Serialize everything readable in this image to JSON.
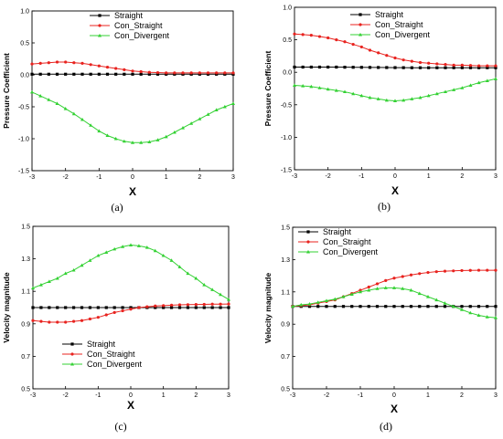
{
  "chart_data": [
    {
      "type": "line",
      "caption": "(a)",
      "xlabel": "X",
      "ylabel": "Pressure Coefficient",
      "xlim": [
        -3,
        3
      ],
      "ylim": [
        -1.5,
        1.0
      ],
      "xticks": [
        -3,
        -2,
        -1,
        0,
        1,
        2,
        3
      ],
      "yticks": [
        -1.5,
        -1.0,
        -0.5,
        0.0,
        0.5,
        1.0
      ],
      "ytick_labels": [
        "-1.5",
        "-1.0",
        "-0.5",
        "0.0",
        "0.5",
        "1.0"
      ],
      "legend_position": "top-right",
      "series": [
        {
          "name": "Straight",
          "color": "#000000",
          "marker": "square",
          "x": [
            -3,
            -2.75,
            -2.5,
            -2.25,
            -2,
            -1.75,
            -1.5,
            -1.25,
            -1,
            -0.75,
            -0.5,
            -0.25,
            0,
            0.25,
            0.5,
            0.75,
            1,
            1.25,
            1.5,
            1.75,
            2,
            2.25,
            2.5,
            2.75,
            3
          ],
          "y": [
            0.01,
            0.01,
            0.01,
            0.01,
            0.01,
            0.01,
            0.01,
            0.01,
            0.01,
            0.01,
            0.01,
            0.01,
            0.01,
            0.01,
            0.01,
            0.01,
            0.01,
            0.01,
            0.01,
            0.01,
            0.01,
            0.01,
            0.01,
            0.01,
            0.01
          ]
        },
        {
          "name": "Con_Straight",
          "color": "#e8231f",
          "marker": "circle",
          "x": [
            -3,
            -2.75,
            -2.5,
            -2.25,
            -2,
            -1.75,
            -1.5,
            -1.25,
            -1,
            -0.75,
            -0.5,
            -0.25,
            0,
            0.25,
            0.5,
            0.75,
            1,
            1.25,
            1.5,
            1.75,
            2,
            2.25,
            2.5,
            2.75,
            3
          ],
          "y": [
            0.17,
            0.18,
            0.19,
            0.2,
            0.2,
            0.19,
            0.18,
            0.16,
            0.14,
            0.12,
            0.1,
            0.08,
            0.06,
            0.05,
            0.04,
            0.035,
            0.03,
            0.03,
            0.03,
            0.03,
            0.03,
            0.03,
            0.03,
            0.03,
            0.03
          ]
        },
        {
          "name": "Con_Divergent",
          "color": "#33d133",
          "marker": "triangle",
          "x": [
            -3,
            -2.75,
            -2.5,
            -2.25,
            -2,
            -1.75,
            -1.5,
            -1.25,
            -1,
            -0.75,
            -0.5,
            -0.25,
            0,
            0.25,
            0.5,
            0.75,
            1,
            1.25,
            1.5,
            1.75,
            2,
            2.25,
            2.5,
            2.75,
            3
          ],
          "y": [
            -0.27,
            -0.33,
            -0.39,
            -0.45,
            -0.53,
            -0.61,
            -0.7,
            -0.79,
            -0.88,
            -0.95,
            -1.0,
            -1.04,
            -1.06,
            -1.06,
            -1.05,
            -1.02,
            -0.97,
            -0.9,
            -0.83,
            -0.76,
            -0.69,
            -0.62,
            -0.55,
            -0.5,
            -0.45
          ]
        }
      ]
    },
    {
      "type": "line",
      "caption": "(b)",
      "xlabel": "X",
      "ylabel": "Pressure Coefficient",
      "xlim": [
        -3,
        3
      ],
      "ylim": [
        -1.5,
        1.0
      ],
      "xticks": [
        -3,
        -2,
        -1,
        0,
        1,
        2,
        3
      ],
      "yticks": [
        -1.5,
        -1.0,
        -0.5,
        0.0,
        0.5,
        1.0
      ],
      "ytick_labels": [
        "-1.5",
        "-1.0",
        "-0.5",
        "0.0",
        "0.5",
        "1.0"
      ],
      "legend_position": "top-right",
      "series": [
        {
          "name": "Straight",
          "color": "#000000",
          "marker": "square",
          "x": [
            -3,
            -2.75,
            -2.5,
            -2.25,
            -2,
            -1.75,
            -1.5,
            -1.25,
            -1,
            -0.75,
            -0.5,
            -0.25,
            0,
            0.25,
            0.5,
            0.75,
            1,
            1.25,
            1.5,
            1.75,
            2,
            2.25,
            2.5,
            2.75,
            3
          ],
          "y": [
            0.08,
            0.08,
            0.08,
            0.08,
            0.08,
            0.08,
            0.078,
            0.077,
            0.076,
            0.075,
            0.074,
            0.073,
            0.072,
            0.071,
            0.07,
            0.07,
            0.07,
            0.07,
            0.07,
            0.07,
            0.07,
            0.07,
            0.07,
            0.07,
            0.07
          ]
        },
        {
          "name": "Con_Straight",
          "color": "#e8231f",
          "marker": "circle",
          "x": [
            -3,
            -2.75,
            -2.5,
            -2.25,
            -2,
            -1.75,
            -1.5,
            -1.25,
            -1,
            -0.75,
            -0.5,
            -0.25,
            0,
            0.25,
            0.5,
            0.75,
            1,
            1.25,
            1.5,
            1.75,
            2,
            2.25,
            2.5,
            2.75,
            3
          ],
          "y": [
            0.59,
            0.58,
            0.57,
            0.55,
            0.53,
            0.5,
            0.47,
            0.43,
            0.39,
            0.34,
            0.3,
            0.26,
            0.22,
            0.19,
            0.17,
            0.15,
            0.14,
            0.13,
            0.12,
            0.11,
            0.11,
            0.105,
            0.1,
            0.1,
            0.1
          ]
        },
        {
          "name": "Con_Divergent",
          "color": "#33d133",
          "marker": "triangle",
          "x": [
            -3,
            -2.75,
            -2.5,
            -2.25,
            -2,
            -1.75,
            -1.5,
            -1.25,
            -1,
            -0.75,
            -0.5,
            -0.25,
            0,
            0.25,
            0.5,
            0.75,
            1,
            1.25,
            1.5,
            1.75,
            2,
            2.25,
            2.5,
            2.75,
            3
          ],
          "y": [
            -0.2,
            -0.21,
            -0.22,
            -0.24,
            -0.26,
            -0.28,
            -0.3,
            -0.33,
            -0.36,
            -0.39,
            -0.41,
            -0.43,
            -0.44,
            -0.43,
            -0.41,
            -0.39,
            -0.36,
            -0.33,
            -0.3,
            -0.27,
            -0.24,
            -0.2,
            -0.16,
            -0.13,
            -0.1
          ]
        }
      ]
    },
    {
      "type": "line",
      "caption": "(c)",
      "xlabel": "X",
      "ylabel": "Velocity magnitude",
      "xlim": [
        -3,
        3
      ],
      "ylim": [
        0.5,
        1.5
      ],
      "xticks": [
        -3,
        -2,
        -1,
        0,
        1,
        2,
        3
      ],
      "yticks": [
        0.5,
        0.7,
        0.9,
        1.1,
        1.3,
        1.5
      ],
      "ytick_labels": [
        "0.5",
        "0.7",
        "0.9",
        "1.1",
        "1.3",
        "1.5"
      ],
      "legend_position": "bottom-left",
      "series": [
        {
          "name": "Straight",
          "color": "#000000",
          "marker": "square",
          "x": [
            -3,
            -2.75,
            -2.5,
            -2.25,
            -2,
            -1.75,
            -1.5,
            -1.25,
            -1,
            -0.75,
            -0.5,
            -0.25,
            0,
            0.25,
            0.5,
            0.75,
            1,
            1.25,
            1.5,
            1.75,
            2,
            2.25,
            2.5,
            2.75,
            3
          ],
          "y": [
            1.0,
            1.0,
            1.0,
            1.0,
            1.0,
            1.0,
            1.0,
            1.0,
            1.0,
            1.0,
            1.0,
            1.0,
            1.0,
            1.0,
            1.0,
            1.0,
            1.0,
            1.0,
            1.0,
            1.0,
            1.0,
            1.0,
            1.0,
            1.0,
            1.0
          ]
        },
        {
          "name": "Con_Straight",
          "color": "#e8231f",
          "marker": "circle",
          "x": [
            -3,
            -2.75,
            -2.5,
            -2.25,
            -2,
            -1.75,
            -1.5,
            -1.25,
            -1,
            -0.75,
            -0.5,
            -0.25,
            0,
            0.25,
            0.5,
            0.75,
            1,
            1.25,
            1.5,
            1.75,
            2,
            2.25,
            2.5,
            2.75,
            3
          ],
          "y": [
            0.92,
            0.915,
            0.91,
            0.91,
            0.91,
            0.915,
            0.92,
            0.93,
            0.94,
            0.955,
            0.97,
            0.98,
            0.99,
            1.0,
            1.005,
            1.01,
            1.012,
            1.015,
            1.017,
            1.018,
            1.019,
            1.02,
            1.021,
            1.021,
            1.022
          ]
        },
        {
          "name": "Con_Divergent",
          "color": "#33d133",
          "marker": "triangle",
          "x": [
            -3,
            -2.75,
            -2.5,
            -2.25,
            -2,
            -1.75,
            -1.5,
            -1.25,
            -1,
            -0.75,
            -0.5,
            -0.25,
            0,
            0.25,
            0.5,
            0.75,
            1,
            1.25,
            1.5,
            1.75,
            2,
            2.25,
            2.5,
            2.75,
            3
          ],
          "y": [
            1.12,
            1.14,
            1.16,
            1.18,
            1.21,
            1.23,
            1.26,
            1.29,
            1.32,
            1.34,
            1.36,
            1.375,
            1.385,
            1.38,
            1.37,
            1.35,
            1.32,
            1.29,
            1.25,
            1.21,
            1.18,
            1.14,
            1.11,
            1.08,
            1.05
          ]
        }
      ]
    },
    {
      "type": "line",
      "caption": "(d)",
      "xlabel": "X",
      "ylabel": "Velocity magnitude",
      "xlim": [
        -3,
        3
      ],
      "ylim": [
        0.5,
        1.5
      ],
      "xticks": [
        -3,
        -2,
        -1,
        0,
        1,
        2,
        3
      ],
      "yticks": [
        0.5,
        0.7,
        0.9,
        1.1,
        1.3,
        1.5
      ],
      "ytick_labels": [
        "0.5",
        "0.7",
        "0.9",
        "1.1",
        "1.3",
        "1.5"
      ],
      "legend_position": "top-left",
      "series": [
        {
          "name": "Straight",
          "color": "#000000",
          "marker": "square",
          "x": [
            -3,
            -2.75,
            -2.5,
            -2.25,
            -2,
            -1.75,
            -1.5,
            -1.25,
            -1,
            -0.75,
            -0.5,
            -0.25,
            0,
            0.25,
            0.5,
            0.75,
            1,
            1.25,
            1.5,
            1.75,
            2,
            2.25,
            2.5,
            2.75,
            3
          ],
          "y": [
            1.01,
            1.01,
            1.01,
            1.01,
            1.01,
            1.01,
            1.01,
            1.01,
            1.01,
            1.01,
            1.01,
            1.01,
            1.01,
            1.01,
            1.01,
            1.01,
            1.01,
            1.01,
            1.01,
            1.01,
            1.01,
            1.01,
            1.01,
            1.01,
            1.01
          ]
        },
        {
          "name": "Con_Straight",
          "color": "#e8231f",
          "marker": "circle",
          "x": [
            -3,
            -2.75,
            -2.5,
            -2.25,
            -2,
            -1.75,
            -1.5,
            -1.25,
            -1,
            -0.75,
            -0.5,
            -0.25,
            0,
            0.25,
            0.5,
            0.75,
            1,
            1.25,
            1.5,
            1.75,
            2,
            2.25,
            2.5,
            2.75,
            3
          ],
          "y": [
            1.01,
            1.015,
            1.02,
            1.03,
            1.04,
            1.05,
            1.07,
            1.09,
            1.11,
            1.13,
            1.15,
            1.17,
            1.185,
            1.195,
            1.205,
            1.213,
            1.22,
            1.225,
            1.228,
            1.23,
            1.232,
            1.233,
            1.234,
            1.234,
            1.234
          ]
        },
        {
          "name": "Con_Divergent",
          "color": "#33d133",
          "marker": "triangle",
          "x": [
            -3,
            -2.75,
            -2.5,
            -2.25,
            -2,
            -1.75,
            -1.5,
            -1.25,
            -1,
            -0.75,
            -0.5,
            -0.25,
            0,
            0.25,
            0.5,
            0.75,
            1,
            1.25,
            1.5,
            1.75,
            2,
            2.25,
            2.5,
            2.75,
            3
          ],
          "y": [
            1.01,
            1.02,
            1.025,
            1.035,
            1.045,
            1.055,
            1.07,
            1.085,
            1.1,
            1.11,
            1.12,
            1.125,
            1.125,
            1.12,
            1.11,
            1.09,
            1.07,
            1.05,
            1.03,
            1.01,
            0.99,
            0.97,
            0.955,
            0.945,
            0.94
          ]
        }
      ]
    }
  ]
}
